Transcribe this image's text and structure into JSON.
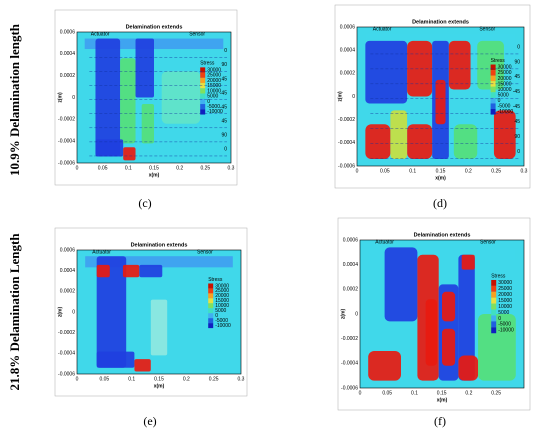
{
  "row_labels": [
    "10.9% Delamination length",
    "21.8% Delamination Length"
  ],
  "panels": [
    {
      "label": "(c)",
      "title": "Delamination extends",
      "actuator": "Actuator",
      "sensor": "Sensor",
      "x_label": "x(m)",
      "z_label": "z(m)",
      "x_ticks": [
        "0",
        "0.05",
        "0.1",
        "0.15",
        "0.2",
        "0.25",
        "0.3"
      ],
      "z_ticks": [
        "0.0006",
        "0.0004",
        "0.0002",
        "0",
        "-0.0002",
        "-0.0004",
        "-0.0006"
      ],
      "legend_title": "Stress",
      "legend_labels": [
        "30000",
        "25000",
        "20000",
        "15000",
        "10000",
        "5000",
        "0",
        "-5000",
        "-10000"
      ],
      "layer_labels": [
        "0",
        "90",
        "45",
        "-45",
        "-45",
        "45",
        "90",
        "0"
      ]
    },
    {
      "label": "(d)",
      "title": "Delamination extends",
      "actuator": "Actuator",
      "sensor": "Sensor",
      "x_label": "x(m)",
      "z_label": "z(m)",
      "x_ticks": [
        "0",
        "0.05",
        "0.1",
        "0.15",
        "0.2",
        "0.25",
        "0.3"
      ],
      "z_ticks": [
        "0.0006",
        "0.0004",
        "0.0002",
        "0",
        "-0.0002",
        "-0.0004",
        "-0.0006"
      ],
      "legend_title": "Stress",
      "legend_labels": [
        "30000",
        "25000",
        "20000",
        "15000",
        "10000",
        "5000",
        "0",
        "-5000",
        "-10000"
      ],
      "layer_labels": [
        "0",
        "90",
        "45",
        "-45",
        "-45",
        "45",
        "90",
        "0"
      ]
    },
    {
      "label": "(e)",
      "title": "Delamination extends",
      "actuator": "Actuator",
      "sensor": "Sensor",
      "x_label": "x(m)",
      "z_label": "z(m)",
      "x_ticks": [
        "0",
        "0.05",
        "0.1",
        "0.15",
        "0.2",
        "0.25",
        "0.3"
      ],
      "z_ticks": [
        "0.0006",
        "0.0004",
        "0.0002",
        "0",
        "-0.0002",
        "-0.0004",
        "-0.0006"
      ],
      "legend_title": "Stress",
      "legend_labels": [
        "30000",
        "25000",
        "20000",
        "15000",
        "10000",
        "5000",
        "0",
        "-5000",
        "-10000"
      ]
    },
    {
      "label": "(f)",
      "title": "Delamination extends",
      "actuator": "Actuator",
      "sensor": "Sensor",
      "x_label": "x(m)",
      "z_label": "z(m)",
      "x_ticks": [
        "0",
        "0.05",
        "0.1",
        "0.15",
        "0.2",
        "0.25"
      ],
      "z_ticks": [
        "0.0006",
        "0.0004",
        "0.0002",
        "0",
        "-0.0002",
        "-0.0004",
        "-0.0006"
      ],
      "legend_title": "Stress",
      "legend_labels": [
        "30000",
        "25000",
        "20000",
        "15000",
        "10000",
        "5000",
        "0",
        "-5000",
        "-10000"
      ]
    }
  ]
}
